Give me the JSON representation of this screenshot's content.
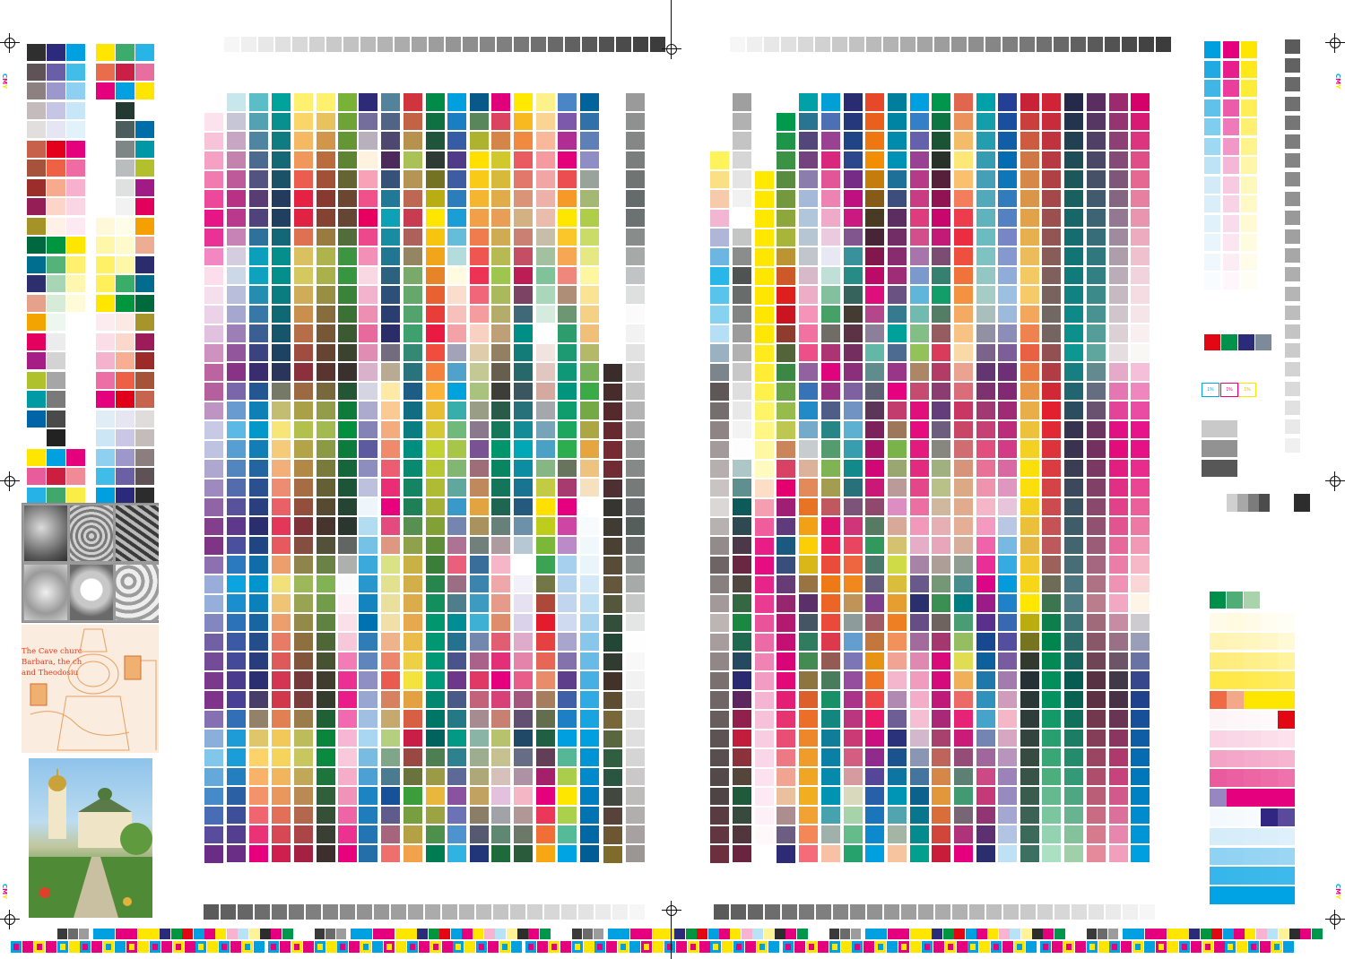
{
  "caption_text": "The Cave churc\nBarbara, the ch\nand Theodosiu",
  "percent_labels": [
    "1%",
    "1%",
    "1%"
  ],
  "registration_marks": [
    "registration-target"
  ],
  "side_marks": "CMY",
  "palette": {
    "cyan": "#00a6e4",
    "magenta": "#e5007e",
    "yellow": "#ffe600",
    "black": "#1d1d1b",
    "red": "#e30613",
    "green": "#009640",
    "blue": "#312783"
  }
}
